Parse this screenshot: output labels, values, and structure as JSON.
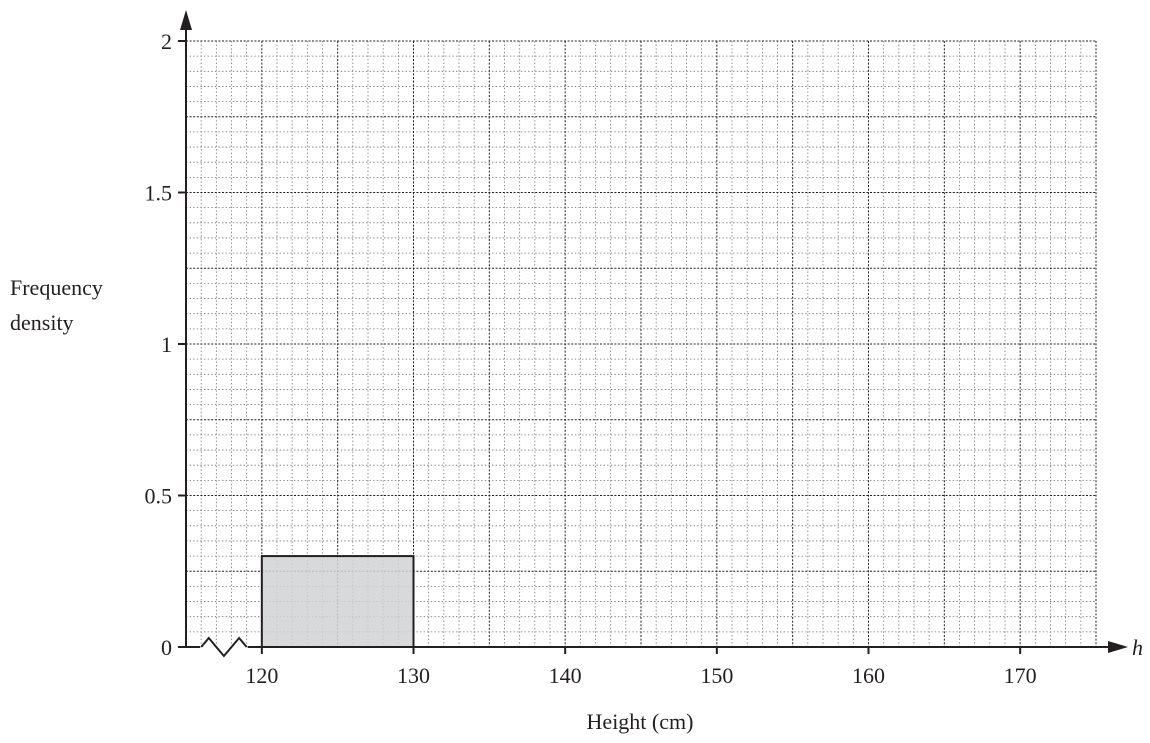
{
  "chart_data": {
    "type": "bar",
    "subtype": "histogram",
    "bins": [
      {
        "from": 120,
        "to": 130,
        "frequency_density": 0.3
      }
    ],
    "xlabel": "Height (cm)",
    "x_variable": "h",
    "ylabel_lines": [
      "Frequency",
      "density"
    ],
    "xlim": [
      115,
      175
    ],
    "ylim": [
      0,
      2
    ],
    "x_ticks": [
      120,
      130,
      140,
      150,
      160,
      170
    ],
    "x_tick_labels": [
      "120",
      "130",
      "140",
      "150",
      "160",
      "170"
    ],
    "y_ticks": [
      0,
      0.5,
      1,
      1.5,
      2
    ],
    "y_tick_labels": [
      "0",
      "0.5",
      "1",
      "1.5",
      "2"
    ],
    "x_axis_break": true,
    "grid": true,
    "colors": {
      "bar_fill": "#d1d2d4",
      "axis": "#231f20",
      "grid_major": "#231f20",
      "grid_minor": "#6d6e71"
    }
  }
}
